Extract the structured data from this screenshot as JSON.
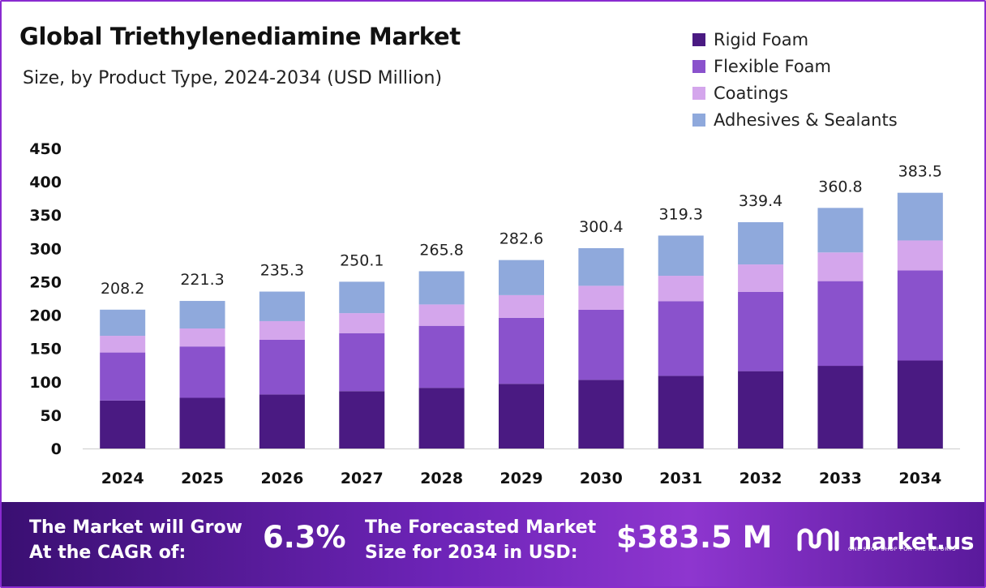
{
  "header": {
    "title": "Global Triethylenediamine Market",
    "subtitle": "Size, by Product Type, 2024-2034 (USD Million)"
  },
  "chart_data": {
    "type": "bar",
    "stacked": true,
    "categories": [
      "2024",
      "2025",
      "2026",
      "2027",
      "2028",
      "2029",
      "2030",
      "2031",
      "2032",
      "2033",
      "2034"
    ],
    "series": [
      {
        "name": "Rigid Foam",
        "color": "#4a1a82",
        "values": [
          72,
          76,
          81,
          86,
          91,
          97,
          103,
          109,
          116,
          124,
          132
        ]
      },
      {
        "name": "Flexible Foam",
        "color": "#8a52cc",
        "values": [
          72,
          77,
          82,
          87,
          93,
          99,
          105,
          112,
          119,
          127,
          135
        ]
      },
      {
        "name": "Coatings",
        "color": "#d4a6ec",
        "values": [
          25,
          27,
          28,
          30,
          32,
          34,
          36,
          38,
          41,
          43,
          45
        ]
      },
      {
        "name": "Adhesives & Sealants",
        "color": "#8fa9dc",
        "values": [
          39.2,
          41.3,
          44.3,
          47.1,
          49.8,
          52.6,
          56.4,
          60.3,
          63.4,
          66.8,
          71.5
        ]
      }
    ],
    "totals": [
      "208.2",
      "221.3",
      "235.3",
      "250.1",
      "265.8",
      "282.6",
      "300.4",
      "319.3",
      "339.4",
      "360.8",
      "383.5"
    ],
    "y_ticks": [
      "0",
      "50",
      "100",
      "150",
      "200",
      "250",
      "300",
      "350",
      "400",
      "450"
    ],
    "ylim": [
      0,
      450
    ],
    "grid": false,
    "legend_position": "top-right"
  },
  "footer": {
    "cagr_label_line1": "The Market will Grow",
    "cagr_label_line2": "At the CAGR of:",
    "cagr_value": "6.3%",
    "forecast_label_line1": "The Forecasted Market",
    "forecast_label_line2": "Size for 2034 in USD:",
    "forecast_value": "$383.5 M",
    "brand_name": "market.us",
    "brand_tagline": "ONE STOP SHOP FOR THE REPORTS",
    "brand_icon": "market-us-logo-icon"
  }
}
